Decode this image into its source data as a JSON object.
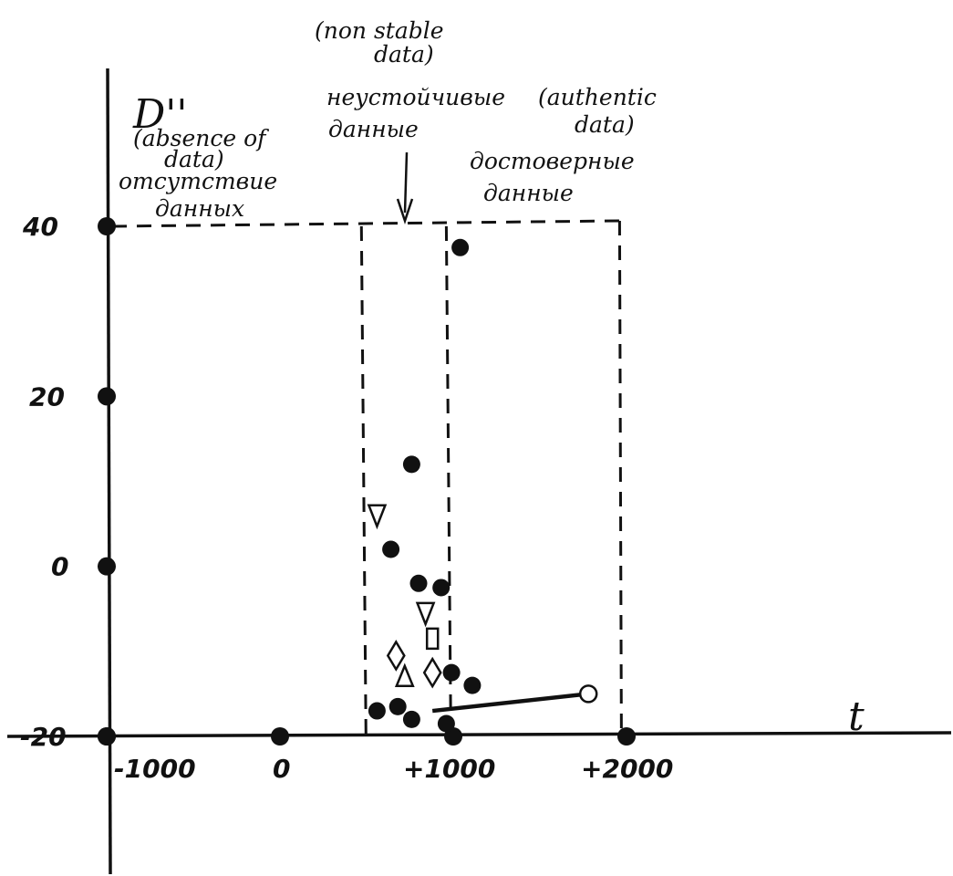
{
  "chart_data": {
    "type": "scatter",
    "xlabel": "t",
    "ylabel": "D''",
    "xlim": [
      -1000,
      3900
    ],
    "ylim": [
      -20,
      40
    ],
    "x_ticks": [
      {
        "value": -1000,
        "label": "-1000"
      },
      {
        "value": 0,
        "label": "0"
      },
      {
        "value": 1000,
        "label": "+1000"
      },
      {
        "value": 2000,
        "label": "+2000"
      }
    ],
    "y_ticks": [
      {
        "value": -20,
        "label": "-20"
      },
      {
        "value": 0,
        "label": "0"
      },
      {
        "value": 20,
        "label": "20"
      },
      {
        "value": 40,
        "label": "40"
      }
    ],
    "regions": [
      {
        "x_start": -1000,
        "x_end": 470,
        "labels": [
          "(absence of",
          "data)",
          "отсутствие",
          "данных"
        ]
      },
      {
        "x_start": 470,
        "x_end": 960,
        "labels": [
          "(non stable",
          "data)",
          "неустойчивые",
          "данные"
        ]
      },
      {
        "x_start": 960,
        "x_end": 1960,
        "labels": [
          "(authentic",
          "data)",
          "достоверные",
          "данные"
        ]
      }
    ],
    "series": [
      {
        "marker": "filled-circle",
        "points": [
          {
            "x": 1040,
            "y": 37.5
          },
          {
            "x": 760,
            "y": 12
          },
          {
            "x": 640,
            "y": 2
          },
          {
            "x": 800,
            "y": -2
          },
          {
            "x": 930,
            "y": -2.5
          },
          {
            "x": 990,
            "y": -12.5
          },
          {
            "x": 1110,
            "y": -14
          },
          {
            "x": 560,
            "y": -17
          },
          {
            "x": 680,
            "y": -16.5
          },
          {
            "x": 760,
            "y": -18
          },
          {
            "x": 960,
            "y": -18.5
          }
        ]
      },
      {
        "marker": "triangle-down",
        "points": [
          {
            "x": 560,
            "y": 6
          },
          {
            "x": 840,
            "y": -5.5
          }
        ]
      },
      {
        "marker": "square",
        "points": [
          {
            "x": 880,
            "y": -8.5
          }
        ]
      },
      {
        "marker": "diamond",
        "points": [
          {
            "x": 670,
            "y": -10.5
          },
          {
            "x": 880,
            "y": -12.5
          }
        ]
      },
      {
        "marker": "triangle-up",
        "points": [
          {
            "x": 720,
            "y": -13
          }
        ]
      },
      {
        "marker": "open-circle",
        "points": [
          {
            "x": 1780,
            "y": -15
          }
        ]
      }
    ],
    "trend_line": {
      "from": {
        "x": 880,
        "y": -17
      },
      "to": {
        "x": 1780,
        "y": -15
      }
    }
  }
}
